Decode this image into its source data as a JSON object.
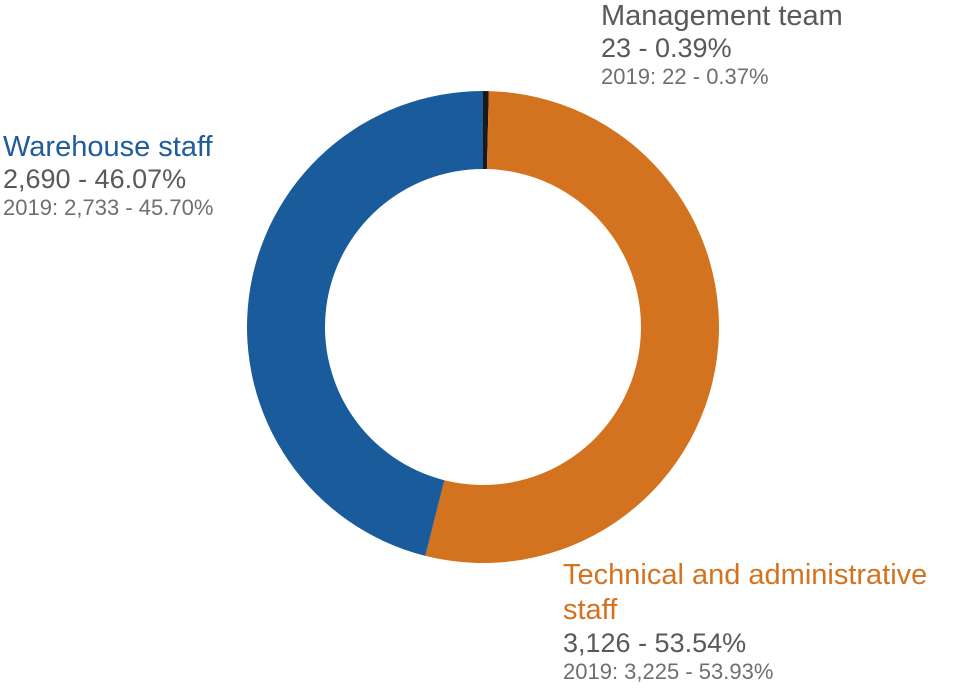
{
  "chart_data": {
    "type": "pie",
    "donut": true,
    "slices": [
      {
        "label": "Management team",
        "value": 23,
        "percent": 0.39,
        "value_text": "23 - 0.39%",
        "prev_text": "2019: 22 - 0.37%",
        "color": "#1a1a1a",
        "label_color": "#595959"
      },
      {
        "label": "Technical and administrative staff",
        "value": 3126,
        "percent": 53.54,
        "value_text": "3,126 - 53.54%",
        "prev_text": "2019: 3,225 - 53.93%",
        "color": "#d4731f",
        "label_color": "#d4731f"
      },
      {
        "label": "Warehouse staff",
        "value": 2690,
        "percent": 46.07,
        "value_text": "2,690 - 46.07%",
        "prev_text": "2019: 2,733 - 45.70%",
        "color": "#1a5c9b",
        "label_color": "#1f5c99"
      }
    ]
  }
}
